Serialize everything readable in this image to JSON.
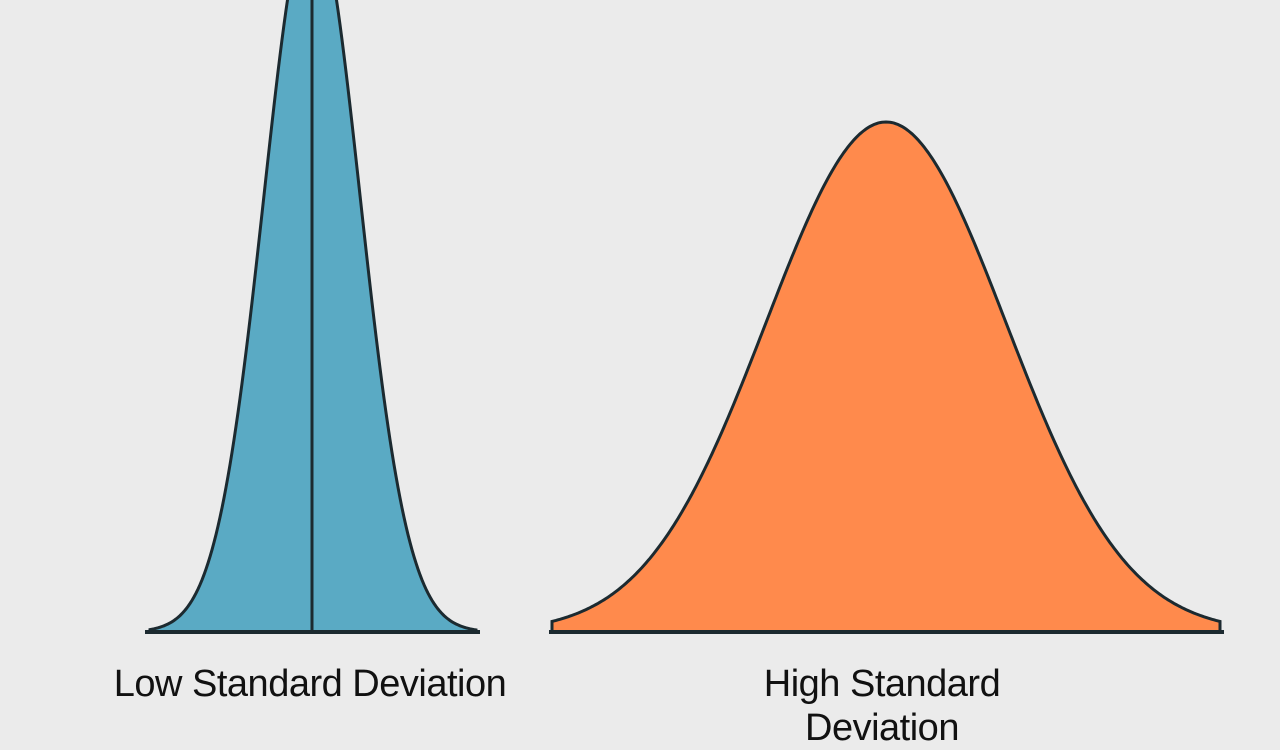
{
  "colors": {
    "background": "#ebebeb",
    "low_fill": "#5aaac4",
    "high_fill": "#ff8a4c",
    "outline": "#1c2a30"
  },
  "low": {
    "label": "Low Standard Deviation"
  },
  "high": {
    "label": "High Standard Deviation"
  }
}
